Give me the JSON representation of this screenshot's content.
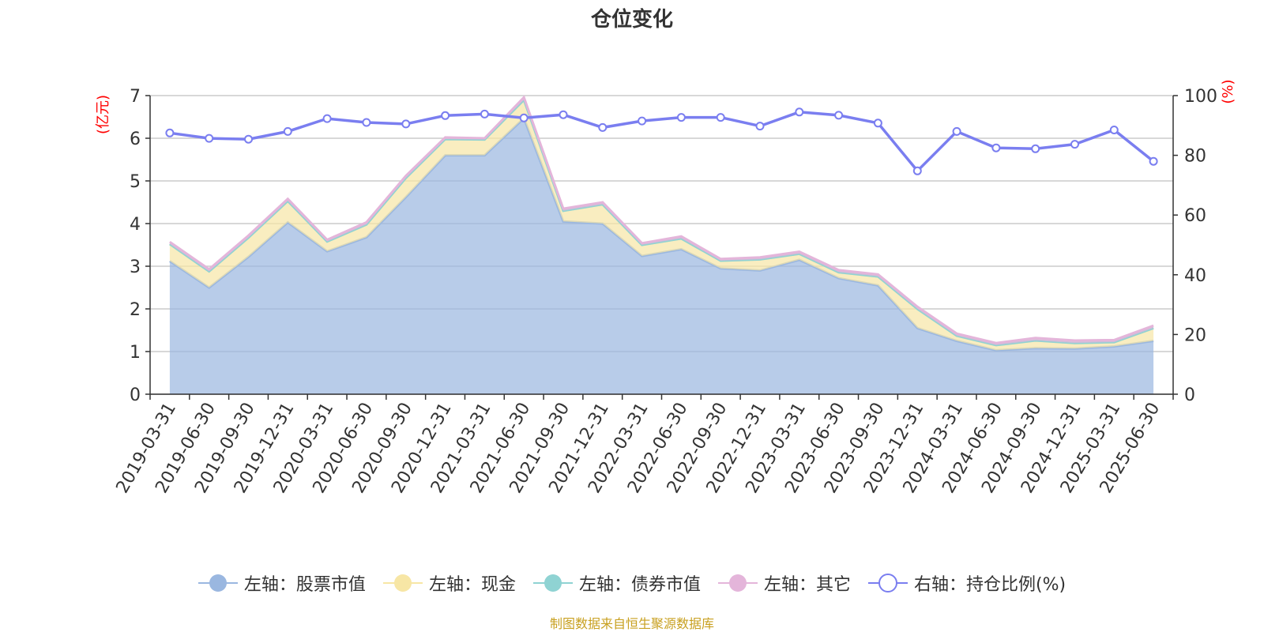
{
  "chart_data": {
    "type": "area",
    "title": "仓位变化",
    "left_axis_unit": "(亿元)",
    "right_axis_unit": "(%)",
    "left_ylim": [
      0,
      7
    ],
    "left_ticks": [
      "0",
      "1",
      "2",
      "3",
      "4",
      "5",
      "6",
      "7"
    ],
    "right_ylim": [
      0,
      100
    ],
    "right_ticks": [
      "0",
      "20",
      "40",
      "60",
      "80",
      "100"
    ],
    "grid": true,
    "legend_position": "bottom",
    "categories": [
      "2019-03-31",
      "2019-06-30",
      "2019-09-30",
      "2019-12-31",
      "2020-03-31",
      "2020-06-30",
      "2020-09-30",
      "2020-12-31",
      "2021-03-31",
      "2021-06-30",
      "2021-09-30",
      "2021-12-31",
      "2022-03-31",
      "2022-06-30",
      "2022-09-30",
      "2022-12-31",
      "2023-03-31",
      "2023-06-30",
      "2023-09-30",
      "2023-12-31",
      "2024-03-31",
      "2024-06-30",
      "2024-09-30",
      "2024-12-31",
      "2025-03-31",
      "2025-06-30"
    ],
    "stacked_series": [
      {
        "name": "左轴：股票市值",
        "color": "#9ab7e0",
        "values": [
          3.12,
          2.5,
          3.22,
          4.03,
          3.35,
          3.68,
          4.62,
          5.6,
          5.6,
          6.47,
          4.05,
          4.0,
          3.24,
          3.4,
          2.95,
          2.9,
          3.15,
          2.72,
          2.55,
          1.55,
          1.25,
          1.03,
          1.08,
          1.07,
          1.12,
          1.25
        ]
      },
      {
        "name": "左轴：现金",
        "color": "#f7e6a5",
        "values": [
          0.4,
          0.38,
          0.45,
          0.5,
          0.23,
          0.3,
          0.45,
          0.38,
          0.37,
          0.43,
          0.25,
          0.45,
          0.26,
          0.25,
          0.18,
          0.26,
          0.14,
          0.14,
          0.21,
          0.45,
          0.12,
          0.12,
          0.18,
          0.13,
          0.1,
          0.3
        ]
      },
      {
        "name": "左轴：债券市值",
        "color": "#8fd3d3",
        "values": [
          0,
          0,
          0,
          0,
          0,
          0,
          0,
          0,
          0,
          0,
          0,
          0,
          0,
          0,
          0,
          0,
          0,
          0,
          0,
          0,
          0,
          0,
          0,
          0,
          0,
          0
        ]
      },
      {
        "name": "左轴：其它",
        "color": "#e4b5da",
        "values": [
          0.05,
          0.05,
          0.05,
          0.05,
          0.04,
          0.05,
          0.05,
          0.04,
          0.03,
          0.06,
          0.05,
          0.05,
          0.04,
          0.05,
          0.04,
          0.05,
          0.05,
          0.05,
          0.05,
          0.05,
          0.05,
          0.05,
          0.06,
          0.06,
          0.05,
          0.06
        ]
      }
    ],
    "line_series": {
      "name": "右轴：持仓比例(%)",
      "color": "#7a7ef0",
      "values": [
        87.5,
        85.7,
        85.4,
        88.0,
        92.3,
        91.0,
        90.5,
        93.3,
        93.8,
        92.5,
        93.6,
        89.3,
        91.5,
        92.7,
        92.7,
        89.8,
        94.5,
        93.4,
        90.8,
        74.8,
        88.0,
        82.5,
        82.2,
        83.7,
        88.5,
        78.0
      ]
    }
  },
  "legend": [
    {
      "label": "左轴：股票市值",
      "color": "#9ab7e0",
      "style": "filled"
    },
    {
      "label": "左轴：现金",
      "color": "#f7e6a5",
      "style": "filled"
    },
    {
      "label": "左轴：债券市值",
      "color": "#8fd3d3",
      "style": "filled"
    },
    {
      "label": "左轴：其它",
      "color": "#e4b5da",
      "style": "filled"
    },
    {
      "label": "右轴：持仓比例(%)",
      "color": "#7a7ef0",
      "style": "hollow"
    }
  ],
  "source_note": "制图数据来自恒生聚源数据库",
  "colors": {
    "axis": "#333333",
    "grid": "#cccccc",
    "unit_label": "#ff0000"
  }
}
